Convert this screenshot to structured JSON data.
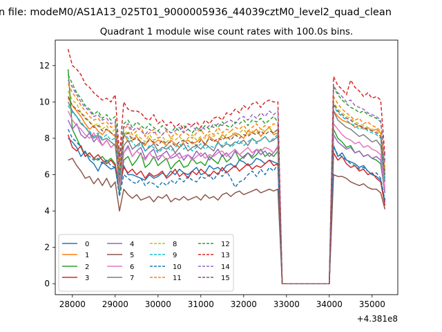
{
  "figure": {
    "suptitle": "n file: modeM0/AS1A13_025T01_9000005936_44039cztM0_level2_quad_clean",
    "title": "Quadrant 1 module wise count rates with 100.0s bins.",
    "offset_text": "+4.381e8"
  },
  "chart_data": {
    "type": "line",
    "title": "Quadrant 1 module wise count rates with 100.0s bins.",
    "xlabel": "",
    "ylabel": "",
    "x_offset": 438100000,
    "xlim": [
      27600,
      35600
    ],
    "ylim": [
      -0.6,
      13.4
    ],
    "xticks": [
      28000,
      29000,
      30000,
      31000,
      32000,
      33000,
      34000,
      35000
    ],
    "yticks": [
      0,
      2,
      4,
      6,
      8,
      10,
      12
    ],
    "legend": {
      "placement": "lower-left",
      "ncol": 4
    },
    "grid": false,
    "segments": [
      {
        "x_start": 27900,
        "x_end": 32800,
        "step": 100
      },
      {
        "x_start": 32900,
        "x_end": 34000,
        "step": 100,
        "zero": true
      },
      {
        "x_start": 34100,
        "x_end": 35300,
        "step": 100
      }
    ],
    "series": [
      {
        "name": "0",
        "color": "#1f77b4",
        "dash": "solid",
        "values": [
          8.0,
          7.8,
          7.5,
          7.0,
          7.3,
          6.8,
          6.6,
          6.2,
          6.7,
          6.5,
          6.3,
          6.4,
          5.0,
          6.5,
          6.0,
          6.0,
          5.9,
          5.8,
          5.7,
          6.0,
          5.8,
          5.9,
          6.1,
          5.9,
          6.2,
          6.0,
          6.3,
          6.1,
          6.0,
          6.2,
          6.4,
          6.0,
          6.1,
          6.5,
          6.3,
          6.4,
          6.2,
          6.5,
          6.6,
          6.4,
          6.8,
          6.7,
          6.5,
          6.6,
          6.9,
          6.8,
          6.6,
          6.8,
          6.7,
          6.6,
          7.6,
          7.0,
          7.2,
          6.8,
          6.7,
          6.6,
          6.4,
          6.5,
          6.2,
          6.0,
          5.9,
          5.7,
          4.5
        ]
      },
      {
        "name": "1",
        "color": "#ff7f0e",
        "dash": "solid",
        "values": [
          10.2,
          9.8,
          9.5,
          9.2,
          8.8,
          8.5,
          8.7,
          8.4,
          8.2,
          8.5,
          8.3,
          8.1,
          6.0,
          8.3,
          7.8,
          7.9,
          8.1,
          7.8,
          7.6,
          8.0,
          7.7,
          7.9,
          7.8,
          7.6,
          7.9,
          7.7,
          7.5,
          7.8,
          7.9,
          7.7,
          7.8,
          8.0,
          7.6,
          8.1,
          7.9,
          7.8,
          8.2,
          8.0,
          8.1,
          8.3,
          8.2,
          8.0,
          8.4,
          8.3,
          8.5,
          8.1,
          8.4,
          8.6,
          8.2,
          8.3,
          9.5,
          9.2,
          9.0,
          8.9,
          8.8,
          8.6,
          8.7,
          8.5,
          8.6,
          8.4,
          8.5,
          8.3,
          6.0
        ]
      },
      {
        "name": "2",
        "color": "#2ca02c",
        "dash": "solid",
        "values": [
          11.8,
          8.5,
          8.0,
          7.5,
          7.0,
          7.2,
          6.9,
          6.8,
          7.0,
          6.7,
          6.9,
          6.6,
          5.0,
          6.8,
          7.0,
          6.5,
          6.8,
          7.2,
          6.4,
          6.6,
          7.0,
          6.5,
          6.7,
          6.9,
          6.3,
          6.6,
          6.8,
          6.4,
          6.5,
          6.9,
          6.6,
          6.7,
          6.5,
          7.0,
          6.8,
          6.6,
          7.1,
          6.7,
          6.9,
          7.3,
          6.8,
          7.0,
          7.2,
          6.9,
          7.1,
          7.4,
          7.0,
          7.2,
          7.0,
          7.3,
          8.5,
          8.0,
          7.8,
          7.5,
          7.6,
          7.2,
          7.3,
          7.0,
          7.1,
          6.9,
          6.8,
          6.6,
          5.0
        ]
      },
      {
        "name": "3",
        "color": "#d62728",
        "dash": "solid",
        "values": [
          8.2,
          7.5,
          7.3,
          7.6,
          7.0,
          7.2,
          6.9,
          7.1,
          6.8,
          6.6,
          6.8,
          6.5,
          5.5,
          6.4,
          6.1,
          6.3,
          6.0,
          6.2,
          5.8,
          6.1,
          5.9,
          6.0,
          6.2,
          5.8,
          6.0,
          6.3,
          5.9,
          6.1,
          5.8,
          6.2,
          6.0,
          6.3,
          6.1,
          5.9,
          6.2,
          6.0,
          6.4,
          6.1,
          6.3,
          6.5,
          6.2,
          6.4,
          6.6,
          6.3,
          6.5,
          6.4,
          6.6,
          6.8,
          6.5,
          6.6,
          7.2,
          6.8,
          7.0,
          6.6,
          6.4,
          6.5,
          6.2,
          6.3,
          6.0,
          6.1,
          5.8,
          5.6,
          4.3
        ]
      },
      {
        "name": "4",
        "color": "#9467bd",
        "dash": "solid",
        "values": [
          9.0,
          8.5,
          8.8,
          8.2,
          8.0,
          8.3,
          7.8,
          8.1,
          7.6,
          7.9,
          7.5,
          7.7,
          5.5,
          7.2,
          7.6,
          7.0,
          7.3,
          7.5,
          6.9,
          7.2,
          7.4,
          6.8,
          7.1,
          7.3,
          6.9,
          7.0,
          7.2,
          6.8,
          7.1,
          6.9,
          7.3,
          7.0,
          7.2,
          6.8,
          7.1,
          7.4,
          7.0,
          7.2,
          6.9,
          7.3,
          7.1,
          6.9,
          7.2,
          7.0,
          7.4,
          7.1,
          7.3,
          7.0,
          7.2,
          7.5,
          8.2,
          7.8,
          7.6,
          7.4,
          7.5,
          7.2,
          7.3,
          7.0,
          7.1,
          6.9,
          7.0,
          6.8,
          5.0
        ]
      },
      {
        "name": "5",
        "color": "#8c564b",
        "dash": "solid",
        "values": [
          6.8,
          6.9,
          6.5,
          6.2,
          5.8,
          5.9,
          5.5,
          5.8,
          5.4,
          5.8,
          5.3,
          5.6,
          4.0,
          5.2,
          4.9,
          4.7,
          4.9,
          4.6,
          4.7,
          4.8,
          4.5,
          4.8,
          4.7,
          4.9,
          4.5,
          4.7,
          4.6,
          4.8,
          4.6,
          4.7,
          4.8,
          4.6,
          4.9,
          4.7,
          4.8,
          4.6,
          4.9,
          5.0,
          4.8,
          5.0,
          5.1,
          4.9,
          5.0,
          5.1,
          5.2,
          5.0,
          5.1,
          5.2,
          5.1,
          5.2,
          6.0,
          5.9,
          5.9,
          5.8,
          5.6,
          5.5,
          5.4,
          5.5,
          5.3,
          5.2,
          5.2,
          5.0,
          4.1
        ]
      },
      {
        "name": "6",
        "color": "#e377c2",
        "dash": "solid",
        "values": [
          9.5,
          9.0,
          8.7,
          8.5,
          8.2,
          8.0,
          8.3,
          7.9,
          7.6,
          7.9,
          7.5,
          7.7,
          5.2,
          7.2,
          7.5,
          7.0,
          7.3,
          7.1,
          6.8,
          7.2,
          6.9,
          7.0,
          7.1,
          6.8,
          7.0,
          7.2,
          6.9,
          7.0,
          7.1,
          6.8,
          7.0,
          7.2,
          6.9,
          7.1,
          7.0,
          7.2,
          7.3,
          7.0,
          7.2,
          7.4,
          7.1,
          7.3,
          7.5,
          7.2,
          7.4,
          7.3,
          7.5,
          7.4,
          7.2,
          7.6,
          8.8,
          8.5,
          8.2,
          8.0,
          7.9,
          7.7,
          7.8,
          7.5,
          7.6,
          7.4,
          7.3,
          7.1,
          5.2
        ]
      },
      {
        "name": "7",
        "color": "#7f7f7f",
        "dash": "solid",
        "values": [
          10.0,
          9.5,
          9.2,
          8.8,
          8.6,
          8.3,
          8.0,
          8.2,
          7.9,
          8.0,
          7.8,
          7.6,
          5.6,
          7.6,
          7.9,
          7.4,
          7.6,
          7.8,
          7.3,
          7.5,
          7.7,
          7.3,
          7.5,
          7.4,
          7.6,
          7.2,
          7.5,
          7.7,
          7.3,
          7.5,
          7.6,
          7.4,
          7.7,
          7.5,
          7.3,
          7.8,
          7.5,
          7.7,
          7.6,
          7.8,
          7.7,
          7.9,
          7.6,
          8.0,
          7.8,
          7.9,
          8.1,
          7.8,
          7.9,
          8.1,
          9.5,
          9.0,
          8.8,
          8.6,
          8.5,
          8.3,
          8.1,
          8.2,
          8.0,
          7.8,
          7.9,
          7.6,
          5.6
        ]
      },
      {
        "name": "8",
        "color": "#bcbd22",
        "dash": "dashed",
        "values": [
          10.6,
          10.1,
          9.9,
          9.4,
          9.2,
          8.9,
          8.7,
          8.8,
          8.5,
          8.7,
          8.3,
          8.5,
          6.2,
          8.2,
          8.4,
          8.0,
          8.2,
          8.0,
          7.8,
          8.2,
          7.9,
          8.0,
          8.1,
          7.8,
          8.0,
          7.9,
          8.1,
          7.8,
          8.0,
          8.2,
          7.9,
          8.1,
          8.0,
          8.2,
          8.1,
          8.3,
          8.0,
          8.2,
          8.4,
          8.1,
          8.3,
          8.5,
          8.2,
          8.4,
          8.3,
          8.5,
          8.4,
          8.6,
          8.3,
          8.5,
          10.0,
          9.6,
          9.4,
          9.2,
          9.1,
          8.9,
          8.8,
          8.7,
          8.6,
          8.5,
          8.4,
          8.2,
          6.2
        ]
      },
      {
        "name": "9",
        "color": "#17becf",
        "dash": "dashed",
        "values": [
          9.8,
          9.4,
          9.2,
          8.9,
          8.6,
          8.4,
          8.1,
          8.3,
          8.0,
          8.2,
          7.9,
          8.0,
          5.8,
          8.3,
          8.0,
          7.8,
          7.5,
          7.7,
          7.3,
          7.6,
          7.5,
          7.2,
          7.4,
          7.6,
          7.3,
          7.5,
          7.7,
          7.4,
          7.6,
          7.3,
          7.5,
          7.7,
          7.4,
          7.6,
          7.5,
          7.7,
          7.6,
          7.8,
          7.5,
          7.7,
          7.9,
          7.6,
          7.8,
          8.0,
          7.7,
          7.9,
          8.1,
          7.8,
          8.0,
          8.2,
          9.8,
          9.4,
          9.2,
          9.0,
          8.8,
          8.7,
          8.5,
          8.6,
          8.4,
          8.3,
          8.2,
          8.0,
          5.8
        ]
      },
      {
        "name": "10",
        "color": "#1f77b4",
        "dash": "dashed",
        "values": [
          8.5,
          8.0,
          7.8,
          7.5,
          7.2,
          7.0,
          6.8,
          6.9,
          6.6,
          6.8,
          6.5,
          6.4,
          4.8,
          6.0,
          5.8,
          5.6,
          5.5,
          5.8,
          5.4,
          5.6,
          5.5,
          5.3,
          5.6,
          5.4,
          5.7,
          5.5,
          5.8,
          5.6,
          5.9,
          5.7,
          5.6,
          5.9,
          5.8,
          6.0,
          5.7,
          6.1,
          5.9,
          6.2,
          5.8,
          5.3,
          5.6,
          5.7,
          6.0,
          6.2,
          5.9,
          6.3,
          6.0,
          6.4,
          6.2,
          6.6,
          7.5,
          7.1,
          7.0,
          6.8,
          6.6,
          6.5,
          6.3,
          6.4,
          6.2,
          6.0,
          6.1,
          5.8,
          4.6
        ]
      },
      {
        "name": "11",
        "color": "#ff7f0e",
        "dash": "dashed",
        "values": [
          11.0,
          10.5,
          10.2,
          9.8,
          9.5,
          9.2,
          9.0,
          9.1,
          8.8,
          8.9,
          8.6,
          8.7,
          6.4,
          8.5,
          8.7,
          8.2,
          8.4,
          8.6,
          8.1,
          8.3,
          8.5,
          8.0,
          8.2,
          8.4,
          8.0,
          8.3,
          8.1,
          8.4,
          8.2,
          8.0,
          8.3,
          8.5,
          8.1,
          8.4,
          8.2,
          8.6,
          8.3,
          8.5,
          8.4,
          8.6,
          8.5,
          8.7,
          8.4,
          8.6,
          8.8,
          8.5,
          8.7,
          8.6,
          8.8,
          8.7,
          10.3,
          9.9,
          9.6,
          9.4,
          9.2,
          9.0,
          9.1,
          8.8,
          8.9,
          8.7,
          8.6,
          8.4,
          6.4
        ]
      },
      {
        "name": "12",
        "color": "#2ca02c",
        "dash": "dashed",
        "values": [
          11.5,
          11.0,
          10.5,
          10.2,
          9.8,
          9.6,
          9.3,
          9.5,
          9.1,
          9.3,
          9.0,
          9.2,
          6.8,
          8.8,
          9.0,
          8.6,
          8.9,
          8.7,
          8.5,
          8.8,
          8.6,
          8.4,
          8.7,
          8.5,
          8.3,
          8.6,
          8.4,
          8.7,
          8.5,
          8.3,
          8.6,
          8.4,
          8.7,
          8.5,
          8.8,
          8.6,
          8.9,
          8.7,
          8.6,
          8.9,
          8.8,
          9.0,
          8.7,
          9.0,
          8.9,
          9.1,
          8.8,
          9.0,
          9.2,
          8.9,
          10.8,
          10.4,
          10.1,
          9.9,
          9.7,
          9.6,
          9.4,
          9.5,
          9.3,
          9.2,
          9.1,
          8.9,
          6.8
        ]
      },
      {
        "name": "13",
        "color": "#d62728",
        "dash": "dashed",
        "values": [
          12.9,
          12.0,
          11.8,
          11.5,
          11.0,
          10.8,
          10.5,
          10.3,
          10.1,
          10.2,
          10.0,
          10.4,
          7.0,
          10.0,
          9.6,
          9.5,
          9.5,
          9.4,
          9.1,
          9.0,
          9.3,
          8.8,
          9.0,
          8.7,
          8.9,
          8.6,
          8.8,
          8.5,
          8.8,
          8.7,
          8.9,
          8.6,
          9.0,
          8.8,
          9.1,
          9.2,
          9.0,
          9.4,
          9.3,
          9.6,
          9.4,
          9.8,
          9.6,
          9.9,
          10.0,
          9.7,
          10.0,
          10.1,
          10.0,
          10.0,
          11.4,
          10.9,
          10.7,
          10.4,
          11.2,
          10.8,
          10.6,
          10.3,
          10.5,
          10.2,
          10.3,
          10.1,
          7.0
        ]
      },
      {
        "name": "14",
        "color": "#9467bd",
        "dash": "dashed",
        "values": [
          11.2,
          10.8,
          10.4,
          10.0,
          9.7,
          9.5,
          9.2,
          9.3,
          9.0,
          9.1,
          8.8,
          8.9,
          6.6,
          8.6,
          8.8,
          8.4,
          8.6,
          8.4,
          8.2,
          8.5,
          8.3,
          8.4,
          8.2,
          8.5,
          8.3,
          8.4,
          8.6,
          8.3,
          8.5,
          8.7,
          8.4,
          8.6,
          8.5,
          8.7,
          8.6,
          8.8,
          8.7,
          8.9,
          9.0,
          8.8,
          9.1,
          9.2,
          9.0,
          9.3,
          9.1,
          9.4,
          9.2,
          9.5,
          9.3,
          9.5,
          10.9,
          10.5,
          10.3,
          10.0,
          10.1,
          9.8,
          9.7,
          9.6,
          9.4,
          9.3,
          9.2,
          9.0,
          6.6
        ]
      },
      {
        "name": "15",
        "color": "#8c564b",
        "dash": "dashed",
        "values": [
          10.3,
          9.8,
          9.6,
          9.4,
          9.1,
          8.9,
          8.6,
          8.7,
          8.4,
          8.5,
          8.3,
          8.2,
          6.0,
          8.1,
          8.3,
          7.9,
          8.0,
          7.8,
          7.7,
          7.9,
          7.8,
          7.6,
          7.9,
          7.7,
          7.8,
          7.6,
          7.8,
          7.9,
          7.7,
          7.8,
          7.6,
          7.9,
          7.7,
          8.0,
          7.8,
          8.0,
          7.9,
          8.1,
          7.9,
          8.2,
          8.0,
          8.2,
          8.1,
          8.3,
          8.2,
          8.4,
          8.2,
          8.4,
          8.3,
          8.5,
          9.9,
          9.5,
          9.3,
          9.1,
          9.0,
          8.8,
          8.7,
          8.6,
          8.5,
          8.4,
          8.3,
          8.1,
          6.0
        ]
      }
    ]
  }
}
